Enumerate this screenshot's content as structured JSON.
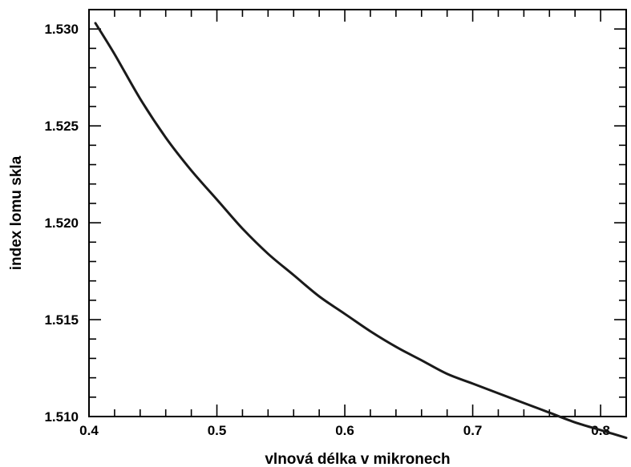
{
  "chart_data": {
    "type": "line",
    "title": "",
    "xlabel": "vlnová délka v mikronech",
    "ylabel": "index lomu skla",
    "xlim": [
      0.4,
      0.82
    ],
    "ylim": [
      1.51,
      1.531
    ],
    "x_ticks": [
      "0.4",
      "0.5",
      "0.6",
      "0.7",
      "0.8"
    ],
    "y_ticks": [
      "1.510",
      "1.515",
      "1.520",
      "1.525",
      "1.530"
    ],
    "grid": false,
    "series": [
      {
        "x": [
          0.405,
          0.42,
          0.44,
          0.46,
          0.48,
          0.5,
          0.52,
          0.54,
          0.56,
          0.58,
          0.6,
          0.62,
          0.64,
          0.66,
          0.68,
          0.7,
          0.72,
          0.74,
          0.76,
          0.78,
          0.8,
          0.82
        ],
        "y": [
          1.5303,
          1.5287,
          1.5264,
          1.5244,
          1.5227,
          1.5212,
          1.5197,
          1.5184,
          1.5173,
          1.5162,
          1.5153,
          1.5144,
          1.5136,
          1.5129,
          1.5122,
          1.5117,
          1.5112,
          1.5107,
          1.5102,
          1.5097,
          1.5093,
          1.5089
        ]
      }
    ]
  }
}
